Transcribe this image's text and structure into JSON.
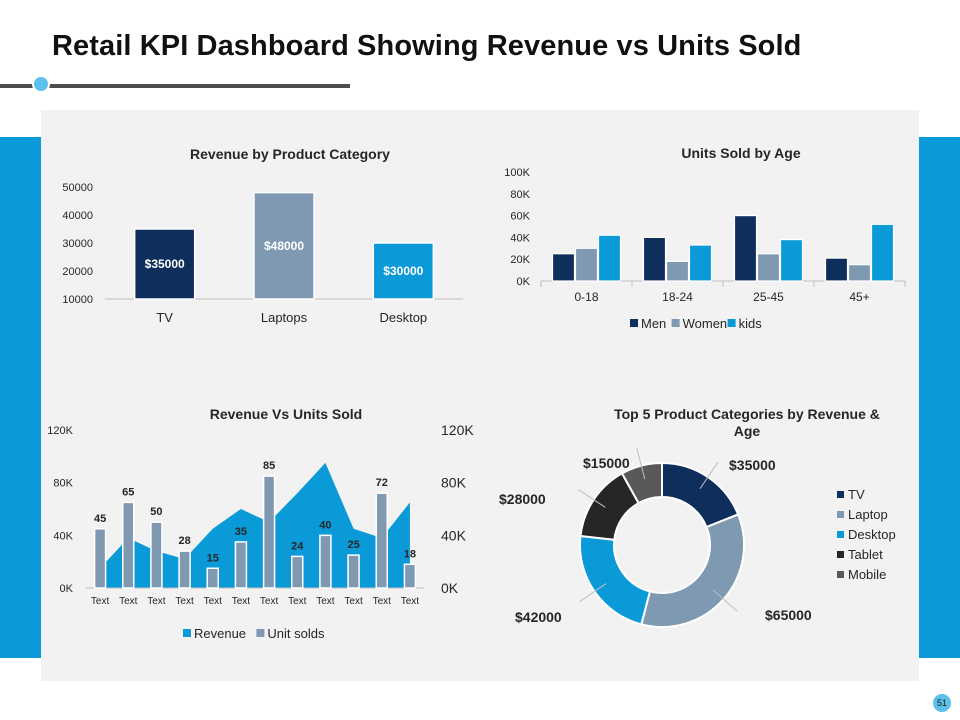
{
  "page": {
    "title": "Retail KPI Dashboard Showing Revenue vs Units Sold",
    "page_number": "51"
  },
  "colors": {
    "navy": "#0e2e5c",
    "steel": "#7f99b2",
    "cyan": "#0b9ad8",
    "dark": "#262626",
    "gray": "#595959",
    "band": "#0b9ad8",
    "panel": "#f2f2f2"
  },
  "chart_data": [
    {
      "id": "revenue-by-category",
      "type": "bar",
      "title": "Revenue by Product Category",
      "categories": [
        "TV",
        "Laptops",
        "Desktop"
      ],
      "values": [
        35000,
        48000,
        30000
      ],
      "data_labels": [
        "$35000",
        "$48000",
        "$30000"
      ],
      "bar_colors": [
        "#0e2e5c",
        "#7f99b2",
        "#0b9ad8"
      ],
      "yticks": [
        "10000",
        "20000",
        "30000",
        "40000",
        "50000"
      ],
      "ylim": [
        10000,
        50000
      ],
      "xlabel": "",
      "ylabel": "",
      "grid": false
    },
    {
      "id": "units-by-age",
      "type": "bar",
      "title": "Units Sold by Age",
      "categories": [
        "0-18",
        "18-24",
        "25-45",
        "45+"
      ],
      "series": [
        {
          "name": "Men",
          "color": "#0e2e5c",
          "values": [
            25000,
            40000,
            60000,
            21000
          ]
        },
        {
          "name": "Women",
          "color": "#7f99b2",
          "values": [
            30000,
            18000,
            25000,
            15000
          ]
        },
        {
          "name": "kids",
          "color": "#0b9ad8",
          "values": [
            42000,
            33000,
            38000,
            52000
          ]
        }
      ],
      "yticks": [
        "0K",
        "20K",
        "40K",
        "60K",
        "80K",
        "100K"
      ],
      "ylim": [
        0,
        100000
      ],
      "legend": "bottom",
      "grid": false
    },
    {
      "id": "revenue-vs-units",
      "type": "bar",
      "title": "Revenue Vs Units Sold",
      "categories": [
        "Text",
        "Text",
        "Text",
        "Text",
        "Text",
        "Text",
        "Text",
        "Text",
        "Text",
        "Text",
        "Text",
        "Text"
      ],
      "series": [
        {
          "name": "Revenue",
          "type": "area",
          "axis": "right",
          "color": "#0b9ad8",
          "values": [
            15000,
            38000,
            28000,
            22000,
            45000,
            60000,
            50000,
            72000,
            95000,
            45000,
            38000,
            65000
          ]
        },
        {
          "name": "Unit solds",
          "type": "bar",
          "axis": "left",
          "color": "#7f99b2",
          "values": [
            45,
            65,
            50,
            28,
            15,
            35,
            85,
            24,
            40,
            25,
            72,
            18
          ]
        }
      ],
      "left_yticks": [
        "0K",
        "40K",
        "80K",
        "120K"
      ],
      "left_ylim": [
        0,
        120
      ],
      "right_yticks": [
        "0K",
        "40K",
        "80K",
        "120K"
      ],
      "right_ylim": [
        0,
        120000
      ],
      "legend": "bottom"
    },
    {
      "id": "top5-categories",
      "type": "pie",
      "donut": true,
      "title_lines": [
        "Top 5 Product Categories by Revenue &",
        "Age"
      ],
      "slices": [
        {
          "label": "TV",
          "value": 35000,
          "text": "$35000",
          "color": "#0e2e5c"
        },
        {
          "label": "Laptop",
          "value": 65000,
          "text": "$65000",
          "color": "#7f99b2"
        },
        {
          "label": "Desktop",
          "value": 42000,
          "text": "$42000",
          "color": "#0b9ad8"
        },
        {
          "label": "Tablet",
          "value": 28000,
          "text": "$28000",
          "color": "#262626"
        },
        {
          "label": "Mobile",
          "value": 15000,
          "text": "$15000",
          "color": "#595959"
        }
      ],
      "legend": "right"
    }
  ]
}
